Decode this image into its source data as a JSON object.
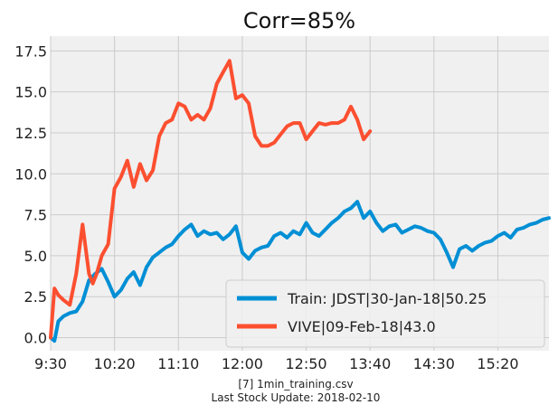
{
  "chart_data": {
    "type": "line",
    "title": "Corr=85%",
    "xlabel": "",
    "ylabel": "",
    "x_unit": "time of day",
    "xlim": [
      "9:30",
      "16:00"
    ],
    "ylim": [
      -0.8,
      18.4
    ],
    "x_ticks": [
      "9:30",
      "10:20",
      "11:10",
      "12:00",
      "12:50",
      "13:40",
      "14:30",
      "15:20"
    ],
    "y_ticks": [
      "0.0",
      "2.5",
      "5.0",
      "7.5",
      "10.0",
      "12.5",
      "15.0",
      "17.5"
    ],
    "y_tick_values": [
      0,
      2.5,
      5,
      7.5,
      10,
      12.5,
      15,
      17.5
    ],
    "grid": true,
    "legend_position": "lower-right",
    "series": [
      {
        "name": "Train: JDST|30-Jan-18|50.25",
        "color": "#008fd5",
        "x": [
          "9:30",
          "9:33",
          "9:36",
          "9:40",
          "9:45",
          "9:50",
          "9:55",
          "10:00",
          "10:05",
          "10:10",
          "10:15",
          "10:20",
          "10:25",
          "10:30",
          "10:35",
          "10:40",
          "10:45",
          "10:50",
          "10:55",
          "11:00",
          "11:05",
          "11:10",
          "11:15",
          "11:20",
          "11:25",
          "11:30",
          "11:35",
          "11:40",
          "11:45",
          "11:50",
          "11:55",
          "12:00",
          "12:05",
          "12:10",
          "12:15",
          "12:20",
          "12:25",
          "12:30",
          "12:35",
          "12:40",
          "12:45",
          "12:50",
          "12:55",
          "13:00",
          "13:05",
          "13:10",
          "13:15",
          "13:20",
          "13:25",
          "13:30",
          "13:35",
          "13:40",
          "13:45",
          "13:50",
          "13:55",
          "14:00",
          "14:05",
          "14:10",
          "14:15",
          "14:20",
          "14:25",
          "14:30",
          "14:35",
          "14:40",
          "14:45",
          "14:50",
          "14:55",
          "15:00",
          "15:05",
          "15:10",
          "15:15",
          "15:20",
          "15:25",
          "15:30",
          "15:35",
          "15:40",
          "15:45",
          "15:50",
          "15:55",
          "16:00"
        ],
        "values": [
          0.0,
          -0.2,
          1.0,
          1.3,
          1.5,
          1.6,
          2.2,
          3.5,
          3.9,
          4.2,
          3.4,
          2.5,
          2.9,
          3.6,
          4.0,
          3.2,
          4.3,
          4.9,
          5.2,
          5.5,
          5.7,
          6.2,
          6.6,
          6.9,
          6.2,
          6.5,
          6.3,
          6.4,
          6.0,
          6.3,
          6.8,
          5.2,
          4.8,
          5.3,
          5.5,
          5.6,
          6.2,
          6.4,
          6.1,
          6.5,
          6.3,
          7.0,
          6.4,
          6.2,
          6.6,
          7.0,
          7.3,
          7.7,
          7.9,
          8.3,
          7.3,
          7.7,
          7.0,
          6.5,
          6.8,
          6.9,
          6.4,
          6.6,
          6.8,
          6.7,
          6.5,
          6.4,
          6.0,
          5.2,
          4.3,
          5.4,
          5.6,
          5.3,
          5.6,
          5.8,
          5.9,
          6.2,
          6.4,
          6.1,
          6.6,
          6.7,
          6.9,
          7.0,
          7.2,
          7.3
        ]
      },
      {
        "name": "VIVE|09-Feb-18|43.0",
        "color": "#fc4f30",
        "x": [
          "9:30",
          "9:33",
          "9:36",
          "9:40",
          "9:45",
          "9:50",
          "9:55",
          "10:00",
          "10:03",
          "10:06",
          "10:10",
          "10:15",
          "10:20",
          "10:25",
          "10:30",
          "10:35",
          "10:40",
          "10:45",
          "10:50",
          "10:55",
          "11:00",
          "11:05",
          "11:10",
          "11:15",
          "11:20",
          "11:25",
          "11:30",
          "11:35",
          "11:40",
          "11:45",
          "11:50",
          "11:55",
          "12:00",
          "12:05",
          "12:10",
          "12:15",
          "12:20",
          "12:25",
          "12:30",
          "12:35",
          "12:40",
          "12:45",
          "12:50",
          "12:55",
          "13:00",
          "13:05",
          "13:10",
          "13:15",
          "13:20",
          "13:25",
          "13:30",
          "13:35",
          "13:40"
        ],
        "values": [
          0.0,
          3.0,
          2.6,
          2.3,
          2.0,
          3.9,
          6.9,
          3.9,
          3.3,
          3.9,
          5.0,
          5.7,
          9.1,
          9.8,
          10.8,
          9.2,
          10.6,
          9.6,
          10.2,
          12.3,
          13.1,
          13.3,
          14.3,
          14.1,
          13.3,
          13.6,
          13.3,
          14.0,
          15.5,
          16.2,
          16.9,
          14.6,
          14.8,
          14.3,
          12.3,
          11.7,
          11.7,
          11.9,
          12.4,
          12.9,
          13.1,
          13.1,
          12.1,
          12.6,
          13.1,
          13.0,
          13.1,
          13.1,
          13.3,
          14.1,
          13.3,
          12.1,
          12.6
        ]
      }
    ]
  },
  "footer": {
    "line1": "[7] 1min_training.csv",
    "line2": "Last Stock Update: 2018-02-10"
  }
}
